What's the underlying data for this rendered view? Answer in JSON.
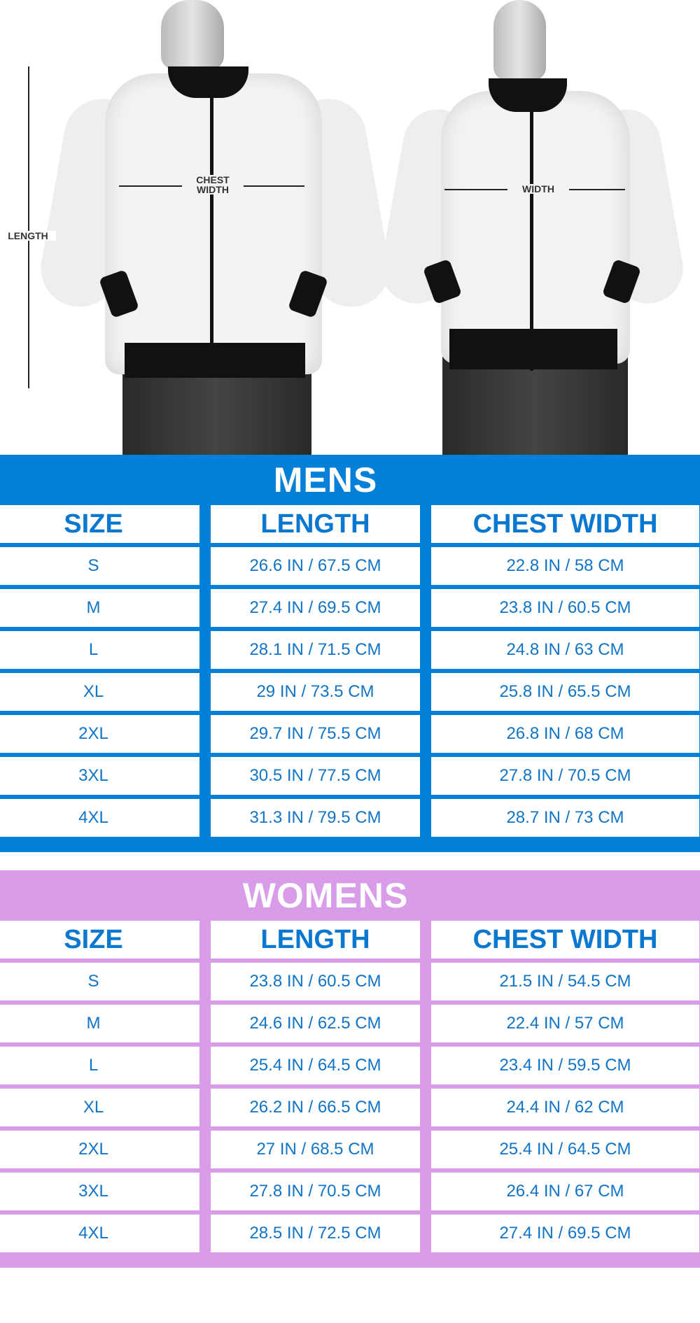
{
  "photo": {
    "length_label": "LENGTH",
    "chest_width_label": "CHEST\nWIDTH",
    "width_label": "WIDTH"
  },
  "colors": {
    "mens": "#0480d8",
    "womens": "#d89ce8",
    "text": "#1174c6"
  },
  "mens": {
    "title": "MENS",
    "headers": [
      "SIZE",
      "LENGTH",
      "CHEST WIDTH"
    ],
    "rows": [
      [
        "S",
        "26.6 IN / 67.5 CM",
        "22.8 IN / 58 CM"
      ],
      [
        "M",
        "27.4 IN / 69.5 CM",
        "23.8 IN / 60.5 CM"
      ],
      [
        "L",
        "28.1 IN / 71.5 CM",
        "24.8 IN / 63 CM"
      ],
      [
        "XL",
        "29 IN / 73.5 CM",
        "25.8 IN / 65.5 CM"
      ],
      [
        "2XL",
        "29.7 IN / 75.5 CM",
        "26.8 IN / 68 CM"
      ],
      [
        "3XL",
        "30.5 IN / 77.5 CM",
        "27.8 IN / 70.5 CM"
      ],
      [
        "4XL",
        "31.3 IN / 79.5 CM",
        "28.7 IN / 73 CM"
      ]
    ]
  },
  "womens": {
    "title": "WOMENS",
    "headers": [
      "SIZE",
      "LENGTH",
      "CHEST WIDTH"
    ],
    "rows": [
      [
        "S",
        "23.8 IN / 60.5 CM",
        "21.5 IN / 54.5 CM"
      ],
      [
        "M",
        "24.6 IN / 62.5 CM",
        "22.4 IN /  57 CM"
      ],
      [
        "L",
        "25.4 IN / 64.5 CM",
        "23.4 IN / 59.5 CM"
      ],
      [
        "XL",
        "26.2 IN / 66.5 CM",
        "24.4 IN / 62 CM"
      ],
      [
        "2XL",
        "27 IN / 68.5 CM",
        "25.4 IN / 64.5 CM"
      ],
      [
        "3XL",
        "27.8 IN / 70.5 CM",
        "26.4 IN / 67 CM"
      ],
      [
        "4XL",
        "28.5 IN / 72.5 CM",
        "27.4 IN / 69.5 CM"
      ]
    ]
  }
}
